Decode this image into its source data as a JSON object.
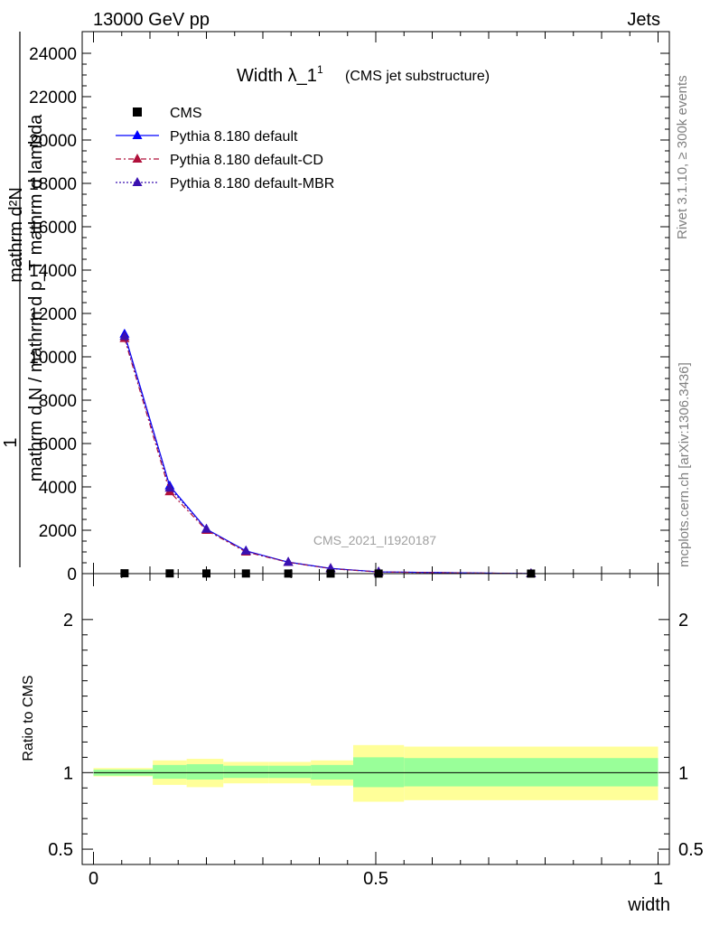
{
  "header": {
    "left": "13000 GeV pp",
    "right": "Jets"
  },
  "side_labels": {
    "rivet": "Rivet 3.1.10, ≥ 300k events",
    "mcplots": "mcplots.cern.ch [arXiv:1306.3436]"
  },
  "watermark": "CMS_2021_I1920187",
  "chart_data": [
    {
      "type": "line",
      "title": "Width λ_1",
      "title_sup": "1",
      "subtitle": "(CMS jet substructure)",
      "ylabel_num": "1",
      "ylabel_den": "mathrm d N / mathrm d p_T mathrm d lambda",
      "ylabel_top": "mathrm d²N",
      "ylim": [
        0,
        25000
      ],
      "yticks": [
        0,
        2000,
        4000,
        6000,
        8000,
        10000,
        12000,
        14000,
        16000,
        18000,
        20000,
        22000,
        24000
      ],
      "ytick_labels": [
        "0",
        "2000",
        "4000",
        "6000",
        "8000",
        "10000",
        "12000",
        "14000",
        "16000",
        "18000",
        "20000",
        "22000",
        "24000"
      ],
      "xlim": [
        -0.02,
        1.02
      ],
      "legend": [
        {
          "name": "CMS",
          "color": "#000000",
          "marker": "square",
          "dash": ""
        },
        {
          "name": "Pythia 8.180 default",
          "color": "#0000ff",
          "marker": "triangle",
          "dash": ""
        },
        {
          "name": "Pythia 8.180 default-CD",
          "color": "#b0103a",
          "marker": "triangle",
          "dash": "6,3,2,3"
        },
        {
          "name": "Pythia 8.180 default-MBR",
          "color": "#3a10b0",
          "marker": "triangle",
          "dash": "2,2"
        }
      ],
      "cms": {
        "x": [
          0.055,
          0.135,
          0.2,
          0.27,
          0.345,
          0.42,
          0.505,
          0.775
        ],
        "y": [
          15,
          10,
          8,
          6,
          4,
          3,
          2,
          1
        ]
      },
      "series": [
        {
          "name": "Pythia 8.180 default",
          "x": [
            0.055,
            0.135,
            0.2,
            0.27,
            0.345,
            0.42,
            0.505,
            0.775
          ],
          "y": [
            11050,
            4050,
            2050,
            1050,
            530,
            240,
            80,
            0
          ]
        },
        {
          "name": "Pythia 8.180 default-CD",
          "x": [
            0.055,
            0.135,
            0.2,
            0.27,
            0.345,
            0.42,
            0.505,
            0.775
          ],
          "y": [
            10850,
            3780,
            2000,
            1000,
            520,
            230,
            75,
            0
          ]
        },
        {
          "name": "Pythia 8.180 default-MBR",
          "x": [
            0.055,
            0.135,
            0.2,
            0.27,
            0.345,
            0.42,
            0.505,
            0.775
          ],
          "y": [
            10950,
            3950,
            2050,
            1040,
            525,
            235,
            78,
            0
          ]
        }
      ]
    },
    {
      "type": "area",
      "ylabel": "Ratio to CMS",
      "xlabel": "width",
      "ylim": [
        0.4,
        2.3
      ],
      "yticks": [
        0.5,
        1,
        2
      ],
      "ytick_labels": [
        "0.5",
        "1",
        "2"
      ],
      "xticks": [
        0,
        0.5,
        1
      ],
      "xtick_labels": [
        "0",
        "0.5",
        "1"
      ],
      "reference_line": 1,
      "bins": [
        {
          "lo": 0.0,
          "hi": 0.105,
          "inner": [
            0.98,
            1.02
          ],
          "outer": [
            0.975,
            1.03
          ]
        },
        {
          "lo": 0.105,
          "hi": 0.165,
          "inner": [
            0.96,
            1.05
          ],
          "outer": [
            0.92,
            1.08
          ]
        },
        {
          "lo": 0.165,
          "hi": 0.23,
          "inner": [
            0.955,
            1.055
          ],
          "outer": [
            0.905,
            1.09
          ]
        },
        {
          "lo": 0.23,
          "hi": 0.31,
          "inner": [
            0.965,
            1.045
          ],
          "outer": [
            0.93,
            1.07
          ]
        },
        {
          "lo": 0.31,
          "hi": 0.385,
          "inner": [
            0.965,
            1.045
          ],
          "outer": [
            0.93,
            1.07
          ]
        },
        {
          "lo": 0.385,
          "hi": 0.46,
          "inner": [
            0.955,
            1.05
          ],
          "outer": [
            0.915,
            1.08
          ]
        },
        {
          "lo": 0.46,
          "hi": 0.55,
          "inner": [
            0.905,
            1.1
          ],
          "outer": [
            0.81,
            1.18
          ]
        },
        {
          "lo": 0.55,
          "hi": 1.0,
          "inner": [
            0.91,
            1.095
          ],
          "outer": [
            0.82,
            1.17
          ]
        }
      ],
      "colors": {
        "inner": "#99ff99",
        "outer": "#ffff99"
      }
    }
  ]
}
